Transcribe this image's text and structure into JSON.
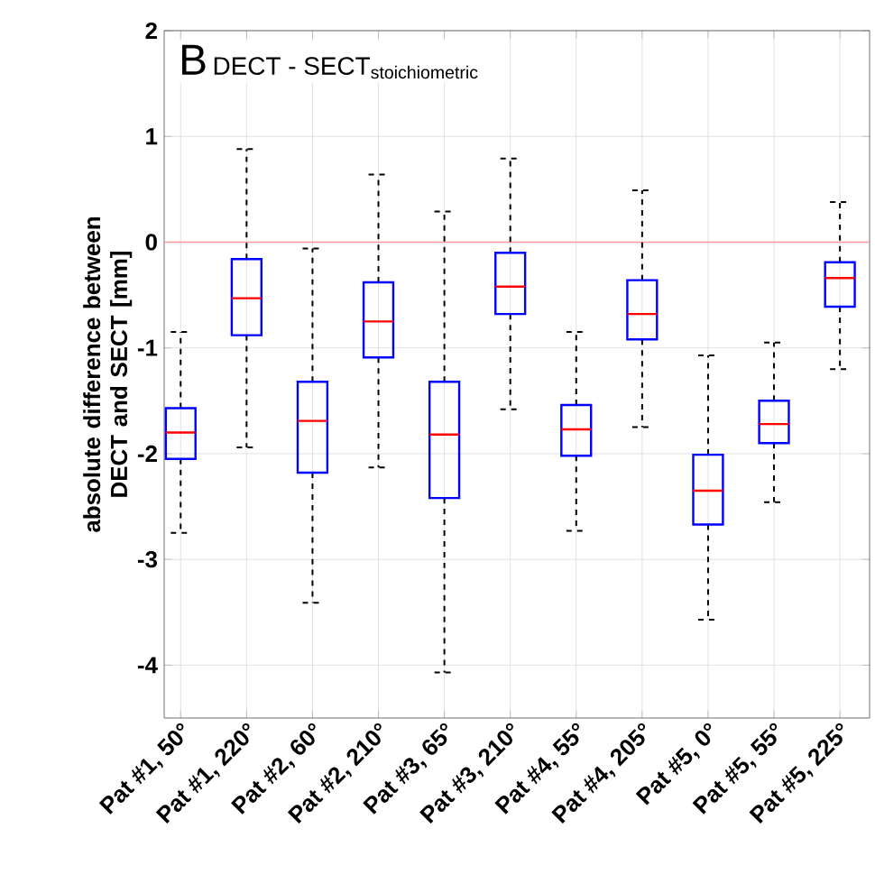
{
  "chart_data": {
    "type": "box",
    "title": "\\text{DECT - SECT}_{\\text{stoichiometric}}",
    "annotations": [
      "B"
    ],
    "ylabel": "absolute difference between DECT and SECT [mm]",
    "categories": [
      "Pat #1, 50°",
      "Pat #1, 220°",
      "Pat #2, 60°",
      "Pat #2, 210°",
      "Pat #3, 65°",
      "Pat #3, 210°",
      "Pat #4, 55°",
      "Pat #4, 205°",
      "Pat #5, 0°",
      "Pat #5, 55°",
      "Pat #5, 225°"
    ],
    "boxes": [
      {
        "low": -2.75,
        "q1": -2.05,
        "median": -1.8,
        "q3": -1.57,
        "high": -0.85
      },
      {
        "low": -1.94,
        "q1": -0.88,
        "median": -0.53,
        "q3": -0.16,
        "high": 0.88
      },
      {
        "low": -3.41,
        "q1": -2.18,
        "median": -1.69,
        "q3": -1.32,
        "high": -0.06
      },
      {
        "low": -2.13,
        "q1": -1.09,
        "median": -0.75,
        "q3": -0.38,
        "high": 0.64
      },
      {
        "low": -4.07,
        "q1": -2.42,
        "median": -1.82,
        "q3": -1.32,
        "high": 0.29
      },
      {
        "low": -1.58,
        "q1": -0.68,
        "median": -0.42,
        "q3": -0.1,
        "high": 0.79
      },
      {
        "low": -2.73,
        "q1": -2.02,
        "median": -1.77,
        "q3": -1.54,
        "high": -0.85
      },
      {
        "low": -1.75,
        "q1": -0.92,
        "median": -0.68,
        "q3": -0.36,
        "high": 0.49
      },
      {
        "low": -3.57,
        "q1": -2.67,
        "median": -2.35,
        "q3": -2.01,
        "high": -1.07
      },
      {
        "low": -2.46,
        "q1": -1.9,
        "median": -1.72,
        "q3": -1.5,
        "high": -0.95
      },
      {
        "low": -1.2,
        "q1": -0.61,
        "median": -0.34,
        "q3": -0.19,
        "high": 0.38
      }
    ],
    "color": "#0000ff",
    "ylim": [
      -4.5,
      2
    ],
    "yticks": [
      -4,
      -3,
      -2,
      -1,
      0,
      1,
      2
    ],
    "grid": true,
    "ref_lines": [
      {
        "axis": "y",
        "value": 0,
        "color": "#ff9999"
      }
    ]
  }
}
